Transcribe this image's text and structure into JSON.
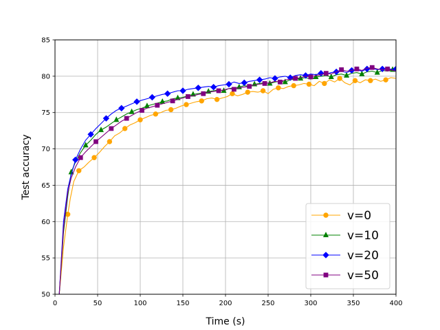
{
  "chart_data": {
    "type": "line",
    "title": "",
    "xlabel": "Time (s)",
    "ylabel": "Test accuracy",
    "xlim": [
      0,
      400
    ],
    "ylim": [
      50,
      85
    ],
    "xticks": [
      0,
      50,
      100,
      150,
      200,
      250,
      300,
      350,
      400
    ],
    "yticks": [
      50,
      55,
      60,
      65,
      70,
      75,
      80,
      85
    ],
    "grid": true,
    "legend_position": "bottom-right",
    "series": [
      {
        "name": "v=0",
        "color": "#ffa500",
        "marker": "circle",
        "x": [
          5,
          10,
          15,
          18,
          22,
          28,
          34,
          40,
          46,
          52,
          58,
          64,
          70,
          76,
          82,
          88,
          94,
          100,
          106,
          112,
          118,
          124,
          130,
          136,
          142,
          148,
          154,
          160,
          166,
          172,
          178,
          184,
          190,
          196,
          202,
          208,
          214,
          220,
          226,
          232,
          238,
          244,
          250,
          256,
          262,
          268,
          274,
          280,
          286,
          292,
          298,
          304,
          310,
          316,
          322,
          328,
          334,
          340,
          346,
          352,
          358,
          364,
          370,
          376,
          382,
          388,
          394,
          400
        ],
        "y": [
          50.0,
          56.5,
          61.0,
          63.2,
          65.5,
          67.0,
          67.5,
          68.2,
          68.8,
          69.5,
          70.3,
          71.0,
          71.8,
          72.2,
          72.8,
          73.3,
          73.6,
          74.0,
          74.3,
          74.6,
          74.8,
          75.0,
          75.3,
          75.4,
          75.6,
          75.9,
          76.1,
          76.3,
          76.5,
          76.6,
          76.9,
          77.0,
          76.8,
          77.0,
          77.2,
          77.6,
          77.3,
          77.5,
          77.8,
          77.9,
          77.8,
          78.0,
          77.6,
          78.2,
          78.4,
          78.3,
          78.6,
          78.7,
          78.8,
          79.0,
          78.9,
          78.7,
          79.3,
          79.0,
          79.5,
          79.2,
          79.7,
          79.1,
          78.8,
          79.4,
          79.1,
          79.5,
          79.4,
          79.6,
          79.3,
          79.5,
          79.8,
          79.7
        ]
      },
      {
        "name": "v=10",
        "color": "#008000",
        "marker": "triangle",
        "x": [
          5,
          10,
          15,
          19,
          24,
          30,
          36,
          42,
          48,
          54,
          60,
          66,
          72,
          78,
          84,
          90,
          96,
          102,
          108,
          114,
          120,
          126,
          132,
          138,
          144,
          150,
          156,
          162,
          168,
          174,
          180,
          186,
          192,
          198,
          204,
          210,
          216,
          222,
          228,
          234,
          240,
          246,
          252,
          258,
          264,
          270,
          276,
          282,
          288,
          294,
          300,
          306,
          312,
          318,
          324,
          330,
          336,
          342,
          348,
          354,
          360,
          366,
          372,
          378,
          384,
          390,
          396,
          400
        ],
        "y": [
          50.0,
          58.5,
          63.5,
          66.8,
          68.2,
          69.5,
          70.5,
          71.2,
          72.0,
          72.6,
          73.0,
          73.5,
          74.0,
          74.4,
          74.8,
          75.1,
          75.4,
          75.6,
          75.9,
          76.1,
          76.3,
          76.5,
          76.6,
          76.9,
          77.0,
          77.1,
          77.3,
          77.5,
          77.6,
          77.7,
          77.9,
          78.0,
          78.1,
          78.0,
          78.3,
          78.4,
          78.5,
          78.7,
          78.6,
          78.9,
          79.0,
          79.1,
          79.0,
          79.2,
          79.3,
          79.2,
          79.5,
          79.6,
          79.7,
          79.8,
          79.6,
          79.9,
          80.0,
          80.1,
          79.9,
          80.2,
          80.3,
          80.1,
          80.4,
          80.5,
          80.3,
          80.6,
          80.7,
          80.5,
          80.8,
          80.7,
          80.9,
          80.8
        ]
      },
      {
        "name": "v=20",
        "color": "#0000ff",
        "marker": "diamond",
        "x": [
          5,
          10,
          15,
          18,
          24,
          30,
          36,
          42,
          48,
          54,
          60,
          66,
          72,
          78,
          84,
          90,
          96,
          102,
          108,
          114,
          120,
          126,
          132,
          138,
          144,
          150,
          156,
          162,
          168,
          174,
          180,
          186,
          192,
          198,
          204,
          210,
          216,
          222,
          228,
          234,
          240,
          246,
          252,
          258,
          264,
          270,
          276,
          282,
          288,
          294,
          300,
          306,
          312,
          318,
          324,
          330,
          336,
          342,
          348,
          354,
          360,
          366,
          372,
          378,
          384,
          390,
          396,
          400
        ],
        "y": [
          50.0,
          60.0,
          64.5,
          66.0,
          68.5,
          70.0,
          71.2,
          72.0,
          72.8,
          73.5,
          74.2,
          74.8,
          75.3,
          75.6,
          75.9,
          76.2,
          76.5,
          76.7,
          76.9,
          77.1,
          77.3,
          77.5,
          77.6,
          77.8,
          78.0,
          78.0,
          78.2,
          78.3,
          78.4,
          78.5,
          78.6,
          78.5,
          78.7,
          78.8,
          78.9,
          79.2,
          79.0,
          79.1,
          79.3,
          79.4,
          79.5,
          79.6,
          79.8,
          79.7,
          79.9,
          80.0,
          79.8,
          80.1,
          80.2,
          80.1,
          80.3,
          80.2,
          80.4,
          80.3,
          80.5,
          80.6,
          80.7,
          80.5,
          80.8,
          80.9,
          80.7,
          81.0,
          81.1,
          80.9,
          81.0,
          81.1,
          80.9,
          81.0
        ]
      },
      {
        "name": "v=50",
        "color": "#800080",
        "marker": "square",
        "x": [
          5,
          10,
          15,
          19,
          24,
          30,
          36,
          42,
          48,
          54,
          60,
          66,
          72,
          78,
          84,
          90,
          96,
          102,
          108,
          114,
          120,
          126,
          132,
          138,
          144,
          150,
          156,
          162,
          168,
          174,
          180,
          186,
          192,
          198,
          204,
          210,
          216,
          222,
          228,
          234,
          240,
          246,
          252,
          258,
          264,
          270,
          276,
          282,
          288,
          294,
          300,
          306,
          312,
          318,
          324,
          330,
          336,
          342,
          348,
          354,
          360,
          366,
          372,
          378,
          384,
          390,
          396,
          400
        ],
        "y": [
          50.0,
          59.0,
          64.0,
          66.0,
          67.5,
          68.8,
          69.6,
          70.3,
          71.0,
          71.6,
          72.2,
          72.8,
          73.3,
          73.8,
          74.2,
          74.6,
          75.0,
          75.3,
          75.6,
          75.8,
          76.0,
          76.2,
          76.4,
          76.6,
          76.8,
          77.0,
          77.2,
          77.3,
          77.5,
          77.6,
          77.8,
          77.9,
          78.0,
          78.1,
          78.3,
          78.2,
          78.4,
          78.5,
          78.6,
          78.8,
          78.9,
          79.0,
          79.1,
          79.3,
          79.2,
          79.5,
          79.6,
          79.7,
          79.8,
          80.0,
          79.9,
          80.1,
          80.2,
          80.4,
          80.3,
          80.6,
          80.9,
          80.7,
          80.8,
          81.0,
          80.8,
          81.1,
          81.2,
          81.0,
          80.9,
          81.0,
          80.8,
          80.7
        ]
      }
    ]
  }
}
